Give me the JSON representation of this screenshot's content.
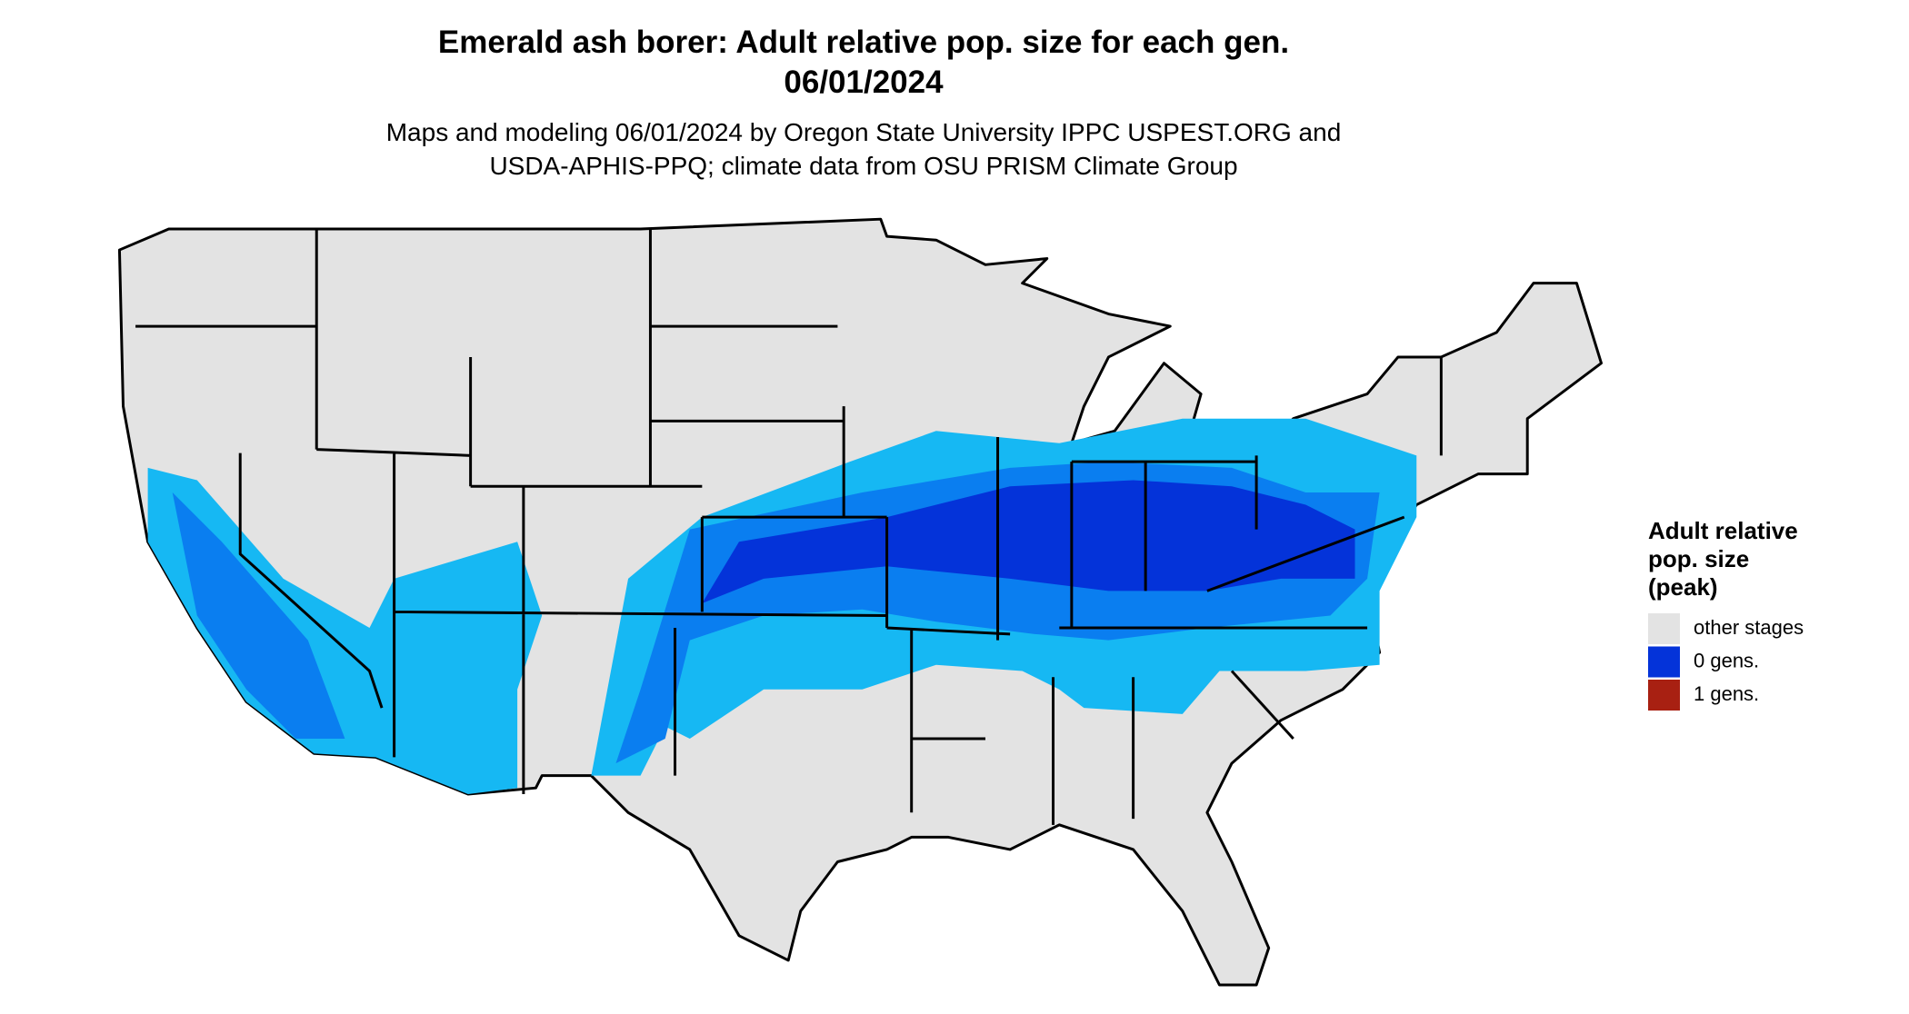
{
  "header": {
    "title": [
      "Emerald ash borer: Adult relative pop. size for each gen.",
      "06/01/2024"
    ],
    "subtitle": [
      "Maps and modeling 06/01/2024 by Oregon State University IPPC USPEST.ORG and",
      "USDA-APHIS-PPQ; climate data from OSU PRISM Climate Group"
    ]
  },
  "legend": {
    "title": [
      "Adult relative",
      "pop. size",
      "(peak)"
    ],
    "items": [
      {
        "label": "other stages",
        "color": "#e3e3e3"
      },
      {
        "label": "0 gens.",
        "color": "#0433d9"
      },
      {
        "label": "1 gens.",
        "color": "#a82012"
      }
    ]
  }
}
